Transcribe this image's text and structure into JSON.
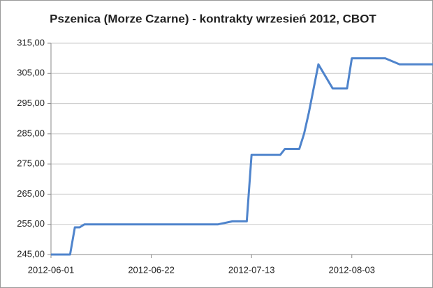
{
  "chart_data": {
    "type": "line",
    "title": "Pszenica (Morze Czarne) - kontrakty wrzesień 2012, CBOT",
    "x": [
      "2012-06-01",
      "2012-06-05",
      "2012-06-06",
      "2012-06-07",
      "2012-06-08",
      "2012-07-06",
      "2012-07-09",
      "2012-07-12",
      "2012-07-13",
      "2012-07-19",
      "2012-07-20",
      "2012-07-23",
      "2012-07-24",
      "2012-07-25",
      "2012-07-26",
      "2012-07-27",
      "2012-07-30",
      "2012-08-02",
      "2012-08-03",
      "2012-08-10",
      "2012-08-13",
      "2012-08-20"
    ],
    "series": [
      {
        "name": "CBOT",
        "color": "#4f84cc",
        "values": [
          245,
          245,
          254,
          254,
          255,
          255,
          256,
          256,
          278,
          278,
          280,
          280,
          285,
          292,
          300,
          308,
          300,
          300,
          310,
          310,
          308,
          308
        ]
      }
    ],
    "xlim": [
      "2012-06-01",
      "2012-08-20"
    ],
    "xticks": [
      "2012-06-01",
      "2012-06-22",
      "2012-07-13",
      "2012-08-03"
    ],
    "ylim": [
      245,
      315
    ],
    "yticks": [
      {
        "value": 245,
        "label": "245,00"
      },
      {
        "value": 255,
        "label": "255,00"
      },
      {
        "value": 265,
        "label": "265,00"
      },
      {
        "value": 275,
        "label": "275,00"
      },
      {
        "value": 285,
        "label": "285,00"
      },
      {
        "value": 295,
        "label": "295,00"
      },
      {
        "value": 305,
        "label": "305,00"
      },
      {
        "value": 315,
        "label": "315,00"
      }
    ],
    "grid": true
  }
}
